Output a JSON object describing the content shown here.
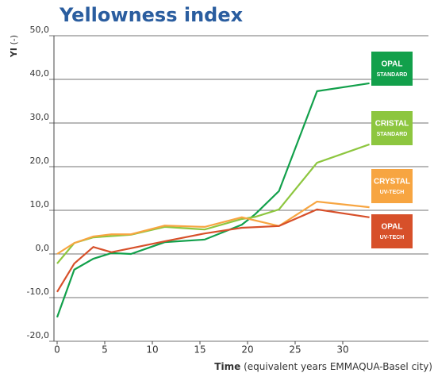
{
  "chart_data": {
    "type": "line",
    "title": "Yellowness index",
    "y_label": [
      "YI",
      "(-)"
    ],
    "x_label": [
      "Time",
      "(equivalent years EMMAQUA-Basel city)"
    ],
    "xlim": [
      0,
      39
    ],
    "xticks": [
      0,
      5,
      10,
      15,
      20,
      25,
      30
    ],
    "ylim": [
      -20,
      50
    ],
    "yticks": [
      {
        "value": -20,
        "label": "-20,0"
      },
      {
        "value": -10,
        "label": "-10,0"
      },
      {
        "value": 0,
        "label": "0,0"
      },
      {
        "value": 10,
        "label": "10,0"
      },
      {
        "value": 20,
        "label": "20,0"
      },
      {
        "value": 30,
        "label": "30,0"
      },
      {
        "value": 40,
        "label": "40,0"
      },
      {
        "value": 50,
        "label": "50,0"
      }
    ],
    "grid": true,
    "series": [
      {
        "name": [
          "OPAL",
          "STANDARD"
        ],
        "color": "#12a04b",
        "x": [
          0,
          1.8,
          3.8,
          5.7,
          7.75,
          11.3,
          15.5,
          19.4,
          20.8,
          23.3,
          27.3,
          32.8
        ],
        "values": [
          -14.5,
          -3.6,
          -1.1,
          0.2,
          0,
          2.7,
          3.3,
          6.7,
          9.1,
          14.4,
          37.3,
          39.1
        ]
      },
      {
        "name": [
          "CRISTAL",
          "STANDARD"
        ],
        "color": "#8dc63f",
        "x": [
          0,
          1.8,
          3.8,
          7.75,
          11.3,
          15.5,
          19.4,
          20.8,
          23.3,
          27.3,
          32.8
        ],
        "values": [
          -2.2,
          2.5,
          3.8,
          4.4,
          6.2,
          5.6,
          8,
          8.5,
          10.2,
          20.9,
          25.1
        ]
      },
      {
        "name": [
          "CRYSTAL",
          "UV-TECH"
        ],
        "color": "#f7a541",
        "x": [
          0,
          1.8,
          3.8,
          5.7,
          7.75,
          11.3,
          15.5,
          19.4,
          23.3,
          27.3,
          32.8
        ],
        "values": [
          0,
          2.5,
          4,
          4.5,
          4.5,
          6.5,
          6.2,
          8.4,
          6.4,
          12,
          10.7
        ]
      },
      {
        "name": [
          "OPAL",
          "UV-TECH"
        ],
        "color": "#d7502a",
        "x": [
          0,
          1.8,
          3.8,
          5.7,
          7.75,
          11.3,
          15.5,
          19.4,
          23.3,
          27.3,
          32.8
        ],
        "values": [
          -8.7,
          -2.2,
          1.6,
          0.4,
          1.3,
          2.9,
          4.7,
          6,
          6.4,
          10.2,
          8.4
        ]
      }
    ]
  }
}
